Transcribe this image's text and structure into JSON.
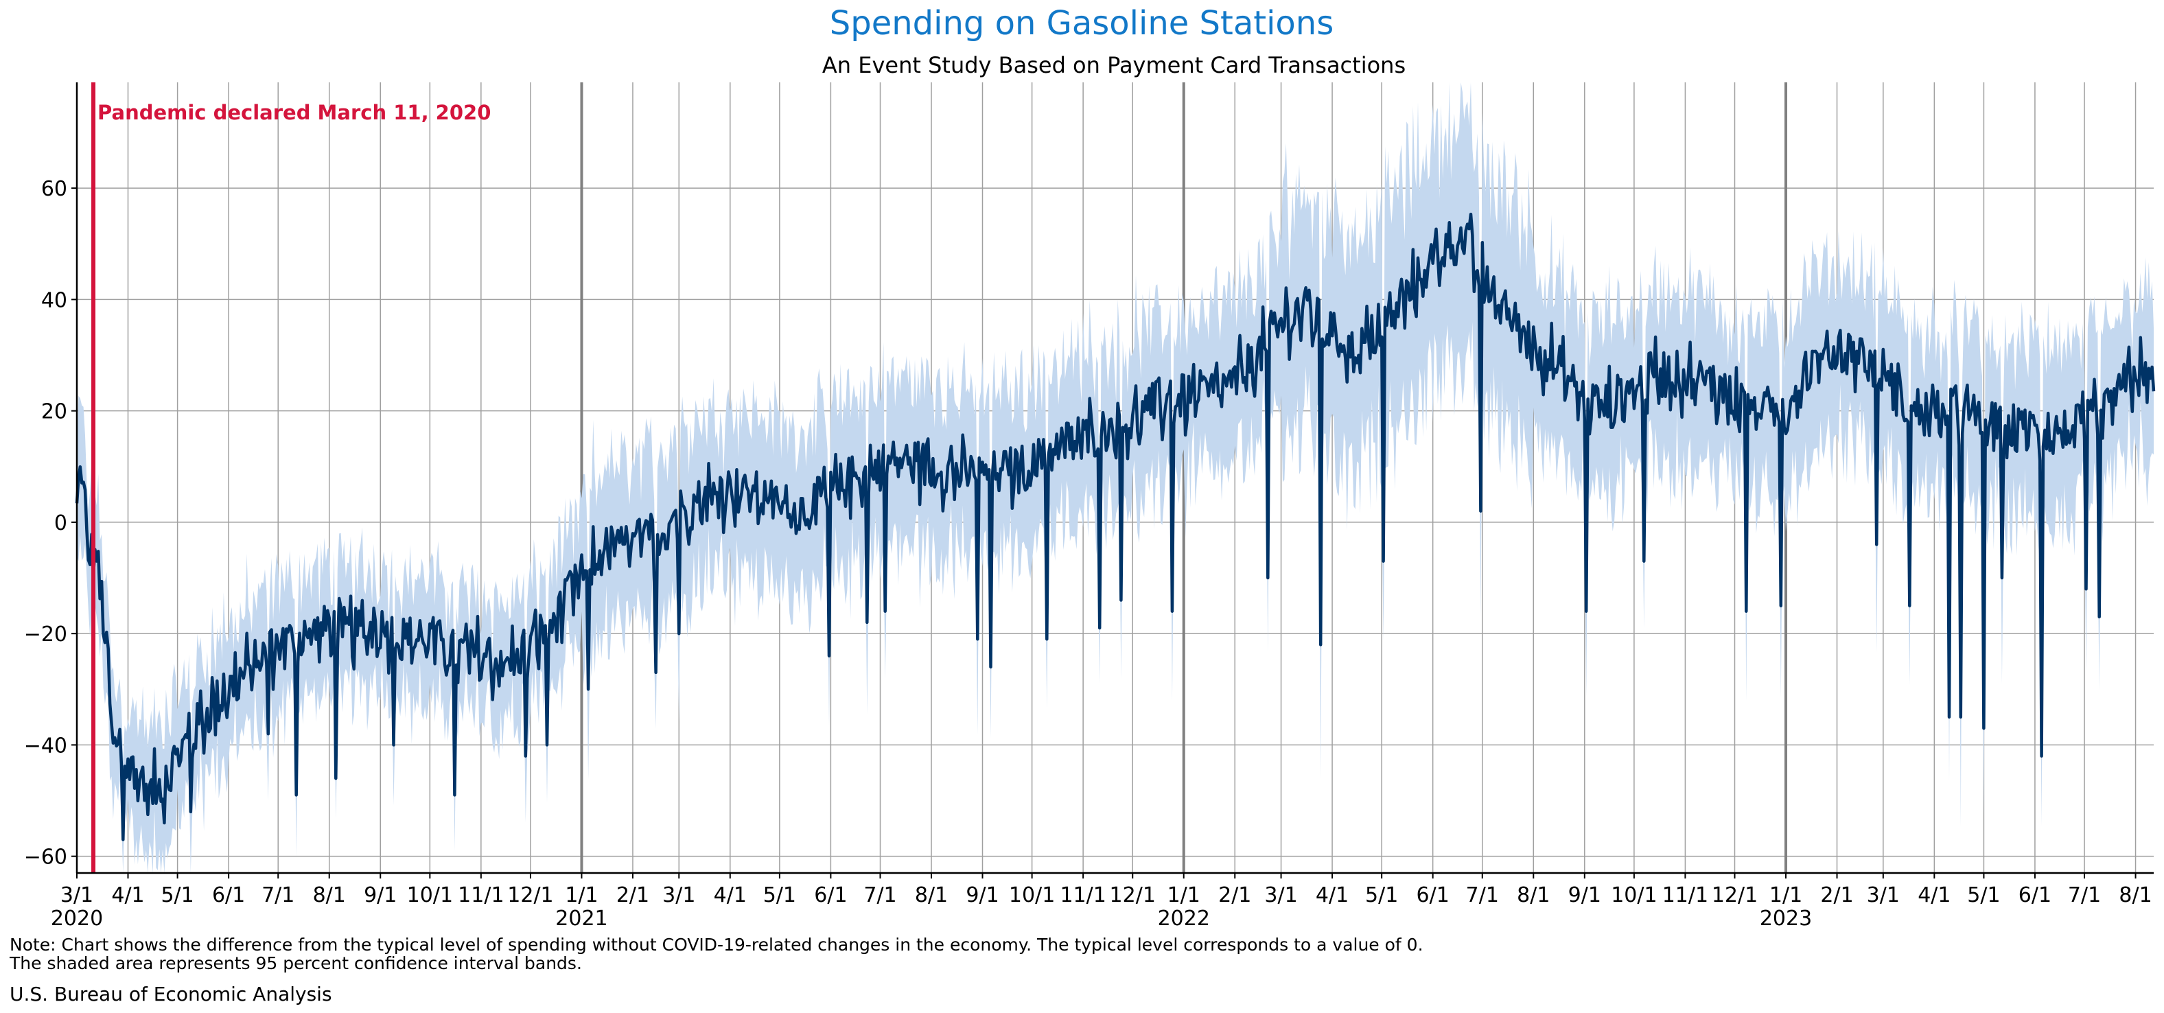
{
  "chart_data": {
    "type": "area",
    "title": "Spending on Gasoline Stations",
    "subtitle": "An Event Study Based on Payment Card Transactions",
    "xlabel": "",
    "ylabel": "",
    "x_start": "2020-03-01",
    "x_end": "2023-08-12",
    "ylim": [
      -63,
      79
    ],
    "yticks": [
      -60,
      -40,
      -20,
      0,
      20,
      40,
      60
    ],
    "grid": true,
    "colors": {
      "title": "#1278C8",
      "line": "#003366",
      "band": "#C4D8EF",
      "event": "#D4143C",
      "year_line": "#808080",
      "grid": "#A0A0A0"
    },
    "xticks": [
      {
        "date": "2020-03-01",
        "label": "3/1"
      },
      {
        "date": "2020-04-01",
        "label": "4/1"
      },
      {
        "date": "2020-05-01",
        "label": "5/1"
      },
      {
        "date": "2020-06-01",
        "label": "6/1"
      },
      {
        "date": "2020-07-01",
        "label": "7/1"
      },
      {
        "date": "2020-08-01",
        "label": "8/1"
      },
      {
        "date": "2020-09-01",
        "label": "9/1"
      },
      {
        "date": "2020-10-01",
        "label": "10/1"
      },
      {
        "date": "2020-11-01",
        "label": "11/1"
      },
      {
        "date": "2020-12-01",
        "label": "12/1"
      },
      {
        "date": "2021-01-01",
        "label": "1/1"
      },
      {
        "date": "2021-02-01",
        "label": "2/1"
      },
      {
        "date": "2021-03-01",
        "label": "3/1"
      },
      {
        "date": "2021-04-01",
        "label": "4/1"
      },
      {
        "date": "2021-05-01",
        "label": "5/1"
      },
      {
        "date": "2021-06-01",
        "label": "6/1"
      },
      {
        "date": "2021-07-01",
        "label": "7/1"
      },
      {
        "date": "2021-08-01",
        "label": "8/1"
      },
      {
        "date": "2021-09-01",
        "label": "9/1"
      },
      {
        "date": "2021-10-01",
        "label": "10/1"
      },
      {
        "date": "2021-11-01",
        "label": "11/1"
      },
      {
        "date": "2021-12-01",
        "label": "12/1"
      },
      {
        "date": "2022-01-01",
        "label": "1/1"
      },
      {
        "date": "2022-02-01",
        "label": "2/1"
      },
      {
        "date": "2022-03-01",
        "label": "3/1"
      },
      {
        "date": "2022-04-01",
        "label": "4/1"
      },
      {
        "date": "2022-05-01",
        "label": "5/1"
      },
      {
        "date": "2022-06-01",
        "label": "6/1"
      },
      {
        "date": "2022-07-01",
        "label": "7/1"
      },
      {
        "date": "2022-08-01",
        "label": "8/1"
      },
      {
        "date": "2022-09-01",
        "label": "9/1"
      },
      {
        "date": "2022-10-01",
        "label": "10/1"
      },
      {
        "date": "2022-11-01",
        "label": "11/1"
      },
      {
        "date": "2022-12-01",
        "label": "12/1"
      },
      {
        "date": "2023-01-01",
        "label": "1/1"
      },
      {
        "date": "2023-02-01",
        "label": "2/1"
      },
      {
        "date": "2023-03-01",
        "label": "3/1"
      },
      {
        "date": "2023-04-01",
        "label": "4/1"
      },
      {
        "date": "2023-05-01",
        "label": "5/1"
      },
      {
        "date": "2023-06-01",
        "label": "6/1"
      },
      {
        "date": "2023-07-01",
        "label": "7/1"
      },
      {
        "date": "2023-08-01",
        "label": "8/1"
      }
    ],
    "year_labels": [
      {
        "date": "2020-03-01",
        "label": "2020"
      },
      {
        "date": "2021-01-01",
        "label": "2021"
      },
      {
        "date": "2022-01-01",
        "label": "2022"
      },
      {
        "date": "2023-01-01",
        "label": "2023"
      }
    ],
    "year_lines": [
      "2021-01-01",
      "2022-01-01",
      "2023-01-01"
    ],
    "event": {
      "date": "2020-03-11",
      "label": "Pandemic declared March 11, 2020"
    },
    "series": [
      {
        "band_half_width": 11,
        "points": [
          {
            "x": "2020-03-01",
            "y": 5
          },
          {
            "x": "2020-03-04",
            "y": 10
          },
          {
            "x": "2020-03-07",
            "y": -4
          },
          {
            "x": "2020-03-11",
            "y": -6
          },
          {
            "x": "2020-03-15",
            "y": -10
          },
          {
            "x": "2020-03-19",
            "y": -24
          },
          {
            "x": "2020-03-23",
            "y": -40
          },
          {
            "x": "2020-03-27",
            "y": -42
          },
          {
            "x": "2020-04-01",
            "y": -44
          },
          {
            "x": "2020-04-08",
            "y": -46
          },
          {
            "x": "2020-04-15",
            "y": -49
          },
          {
            "x": "2020-04-22",
            "y": -46
          },
          {
            "x": "2020-05-01",
            "y": -42
          },
          {
            "x": "2020-05-10",
            "y": -38
          },
          {
            "x": "2020-05-20",
            "y": -34
          },
          {
            "x": "2020-06-01",
            "y": -30
          },
          {
            "x": "2020-06-15",
            "y": -26
          },
          {
            "x": "2020-07-01",
            "y": -22
          },
          {
            "x": "2020-07-15",
            "y": -21
          },
          {
            "x": "2020-08-01",
            "y": -19
          },
          {
            "x": "2020-08-15",
            "y": -20
          },
          {
            "x": "2020-09-01",
            "y": -19
          },
          {
            "x": "2020-09-15",
            "y": -21
          },
          {
            "x": "2020-10-01",
            "y": -21
          },
          {
            "x": "2020-10-15",
            "y": -23
          },
          {
            "x": "2020-11-01",
            "y": -24
          },
          {
            "x": "2020-11-15",
            "y": -26
          },
          {
            "x": "2020-12-01",
            "y": -22
          },
          {
            "x": "2020-12-15",
            "y": -18
          },
          {
            "x": "2021-01-01",
            "y": -10
          },
          {
            "x": "2021-01-15",
            "y": -5
          },
          {
            "x": "2021-02-01",
            "y": -4
          },
          {
            "x": "2021-02-15",
            "y": -3
          },
          {
            "x": "2021-03-01",
            "y": 2
          },
          {
            "x": "2021-03-15",
            "y": 4
          },
          {
            "x": "2021-04-01",
            "y": 6
          },
          {
            "x": "2021-04-15",
            "y": 5
          },
          {
            "x": "2021-05-01",
            "y": 3
          },
          {
            "x": "2021-05-15",
            "y": 2
          },
          {
            "x": "2021-06-01",
            "y": 5
          },
          {
            "x": "2021-06-15",
            "y": 8
          },
          {
            "x": "2021-07-01",
            "y": 10
          },
          {
            "x": "2021-07-15",
            "y": 11
          },
          {
            "x": "2021-08-01",
            "y": 10
          },
          {
            "x": "2021-08-15",
            "y": 9
          },
          {
            "x": "2021-09-01",
            "y": 8
          },
          {
            "x": "2021-09-15",
            "y": 9
          },
          {
            "x": "2021-10-01",
            "y": 10
          },
          {
            "x": "2021-10-15",
            "y": 13
          },
          {
            "x": "2021-11-01",
            "y": 15
          },
          {
            "x": "2021-11-15",
            "y": 17
          },
          {
            "x": "2021-12-01",
            "y": 18
          },
          {
            "x": "2021-12-15",
            "y": 21
          },
          {
            "x": "2022-01-01",
            "y": 22
          },
          {
            "x": "2022-01-15",
            "y": 23
          },
          {
            "x": "2022-02-01",
            "y": 25
          },
          {
            "x": "2022-02-15",
            "y": 30
          },
          {
            "x": "2022-03-01",
            "y": 36
          },
          {
            "x": "2022-03-15",
            "y": 38
          },
          {
            "x": "2022-04-01",
            "y": 34
          },
          {
            "x": "2022-04-15",
            "y": 30
          },
          {
            "x": "2022-05-01",
            "y": 35
          },
          {
            "x": "2022-05-15",
            "y": 40
          },
          {
            "x": "2022-06-01",
            "y": 47
          },
          {
            "x": "2022-06-10",
            "y": 50
          },
          {
            "x": "2022-06-20",
            "y": 51
          },
          {
            "x": "2022-07-01",
            "y": 43
          },
          {
            "x": "2022-07-15",
            "y": 38
          },
          {
            "x": "2022-08-01",
            "y": 32
          },
          {
            "x": "2022-08-15",
            "y": 28
          },
          {
            "x": "2022-09-01",
            "y": 22
          },
          {
            "x": "2022-09-15",
            "y": 21
          },
          {
            "x": "2022-10-01",
            "y": 24
          },
          {
            "x": "2022-10-15",
            "y": 27
          },
          {
            "x": "2022-11-01",
            "y": 26
          },
          {
            "x": "2022-11-15",
            "y": 25
          },
          {
            "x": "2022-12-01",
            "y": 22
          },
          {
            "x": "2022-12-15",
            "y": 20
          },
          {
            "x": "2023-01-01",
            "y": 20
          },
          {
            "x": "2023-01-15",
            "y": 28
          },
          {
            "x": "2023-02-01",
            "y": 31
          },
          {
            "x": "2023-02-15",
            "y": 30
          },
          {
            "x": "2023-03-01",
            "y": 27
          },
          {
            "x": "2023-03-15",
            "y": 21
          },
          {
            "x": "2023-04-01",
            "y": 19
          },
          {
            "x": "2023-04-15",
            "y": 20
          },
          {
            "x": "2023-05-01",
            "y": 18
          },
          {
            "x": "2023-05-15",
            "y": 16
          },
          {
            "x": "2023-06-01",
            "y": 17
          },
          {
            "x": "2023-06-15",
            "y": 16
          },
          {
            "x": "2023-07-01",
            "y": 17
          },
          {
            "x": "2023-07-15",
            "y": 20
          },
          {
            "x": "2023-08-01",
            "y": 27
          },
          {
            "x": "2023-08-12",
            "y": 24
          }
        ],
        "dips": [
          {
            "x": "2020-03-29",
            "y": -57
          },
          {
            "x": "2020-04-23",
            "y": -54
          },
          {
            "x": "2020-05-09",
            "y": -52
          },
          {
            "x": "2020-06-25",
            "y": -38
          },
          {
            "x": "2020-07-12",
            "y": -49
          },
          {
            "x": "2020-08-05",
            "y": -46
          },
          {
            "x": "2020-09-09",
            "y": -40
          },
          {
            "x": "2020-10-16",
            "y": -49
          },
          {
            "x": "2020-11-28",
            "y": -42
          },
          {
            "x": "2020-12-11",
            "y": -40
          },
          {
            "x": "2021-01-05",
            "y": -30
          },
          {
            "x": "2021-02-15",
            "y": -27
          },
          {
            "x": "2021-03-01",
            "y": -20
          },
          {
            "x": "2021-05-31",
            "y": -24
          },
          {
            "x": "2021-06-23",
            "y": -18
          },
          {
            "x": "2021-07-04",
            "y": -16
          },
          {
            "x": "2021-08-29",
            "y": -21
          },
          {
            "x": "2021-09-06",
            "y": -26
          },
          {
            "x": "2021-10-10",
            "y": -21
          },
          {
            "x": "2021-11-11",
            "y": -19
          },
          {
            "x": "2021-11-24",
            "y": -14
          },
          {
            "x": "2021-12-25",
            "y": -16
          },
          {
            "x": "2022-02-21",
            "y": -10
          },
          {
            "x": "2022-03-25",
            "y": -22
          },
          {
            "x": "2022-05-02",
            "y": -7
          },
          {
            "x": "2022-06-30",
            "y": 2
          },
          {
            "x": "2022-09-02",
            "y": -16
          },
          {
            "x": "2022-10-07",
            "y": -7
          },
          {
            "x": "2022-12-08",
            "y": -16
          },
          {
            "x": "2022-12-29",
            "y": -15
          },
          {
            "x": "2023-02-25",
            "y": -4
          },
          {
            "x": "2023-03-17",
            "y": -15
          },
          {
            "x": "2023-04-10",
            "y": -35
          },
          {
            "x": "2023-04-17",
            "y": -35
          },
          {
            "x": "2023-05-01",
            "y": -37
          },
          {
            "x": "2023-05-12",
            "y": -10
          },
          {
            "x": "2023-06-05",
            "y": -42
          },
          {
            "x": "2023-07-02",
            "y": -12
          },
          {
            "x": "2023-07-10",
            "y": -17
          }
        ]
      }
    ]
  },
  "note": {
    "line1": "Note: Chart shows the difference from the typical level of spending without COVID-19-related changes in the economy. The typical level corresponds to a value of 0.",
    "line2": "The shaded area represents 95 percent confidence interval bands."
  },
  "source": "U.S. Bureau of Economic Analysis"
}
